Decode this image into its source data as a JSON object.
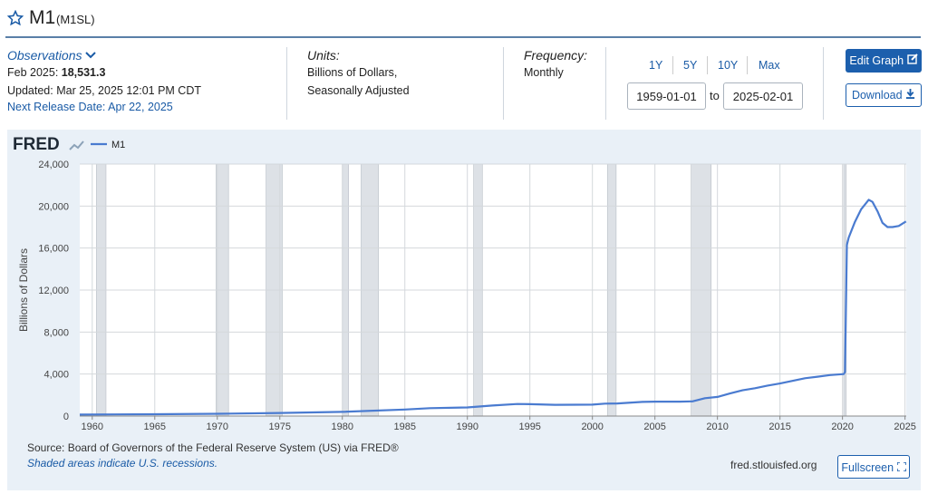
{
  "header": {
    "title": "M1",
    "code": "(M1SL)"
  },
  "observations": {
    "label": "Observations",
    "latest_label": "Feb 2025:",
    "latest_value": "18,531.3",
    "updated": "Updated: Mar 25, 2025 12:01 PM CDT",
    "next_release": "Next Release Date: Apr 22, 2025"
  },
  "units": {
    "label": "Units:",
    "lines": [
      "Billions of Dollars,",
      "Seasonally Adjusted"
    ]
  },
  "frequency": {
    "label": "Frequency:",
    "value": "Monthly"
  },
  "range": {
    "buttons": [
      "1Y",
      "5Y",
      "10Y",
      "Max"
    ],
    "start": "1959-01-01",
    "separator": "to",
    "end": "2025-02-01"
  },
  "actions": {
    "edit": "Edit Graph",
    "download": "Download",
    "fullscreen": "Fullscreen"
  },
  "chart_data": {
    "type": "line",
    "logo": "FRED",
    "y_label": "Billions of Dollars",
    "x": [
      1959,
      1965,
      1970,
      1975,
      1980,
      1985,
      1987,
      1990,
      1992,
      1994,
      1995,
      1997,
      2000,
      2001,
      2002,
      2004,
      2005,
      2007,
      2008,
      2009,
      2010,
      2011,
      2012,
      2013,
      2014,
      2015,
      2016,
      2017,
      2018,
      2019,
      2020.1,
      2020.2,
      2020.35,
      2020.5,
      2021,
      2021.5,
      2022.1,
      2022.4,
      2022.8,
      2023.2,
      2023.6,
      2024,
      2024.5,
      2025.08
    ],
    "series": [
      {
        "name": "M1",
        "color": "#4a7bd0",
        "values": [
          140,
          170,
          215,
          290,
          400,
          620,
          750,
          820,
          1000,
          1150,
          1130,
          1070,
          1090,
          1180,
          1200,
          1350,
          1370,
          1370,
          1400,
          1700,
          1820,
          2150,
          2450,
          2650,
          2900,
          3100,
          3350,
          3600,
          3750,
          3900,
          4000,
          4200,
          16300,
          17000,
          18500,
          19700,
          20600,
          20400,
          19500,
          18400,
          18000,
          18000,
          18100,
          18531.3
        ]
      }
    ],
    "recessions": [
      [
        1960.33,
        1961.1
      ],
      [
        1969.9,
        1970.9
      ],
      [
        1973.9,
        1975.2
      ],
      [
        1980.0,
        1980.5
      ],
      [
        1981.5,
        1982.9
      ],
      [
        1990.5,
        1991.2
      ],
      [
        2001.2,
        2001.9
      ],
      [
        2007.9,
        2009.5
      ],
      [
        2020.1,
        2020.3
      ]
    ],
    "xlim": [
      1959,
      2025.1
    ],
    "ylim": [
      0,
      24000
    ],
    "xticks": [
      1960,
      1965,
      1970,
      1975,
      1980,
      1985,
      1990,
      1995,
      2000,
      2005,
      2010,
      2015,
      2020,
      2025
    ],
    "yticks": [
      0,
      {
        "value": 4000,
        "label": "4,000"
      },
      {
        "value": 8000,
        "label": "8,000"
      },
      {
        "value": 12000,
        "label": "12,000"
      },
      {
        "value": 16000,
        "label": "16,000"
      },
      {
        "value": 20000,
        "label": "20,000"
      },
      {
        "value": 24000,
        "label": "24,000"
      }
    ],
    "grid": true,
    "source": "Source: Board of Governors of the Federal Reserve System (US) via FRED®",
    "note": "Shaded areas indicate U.S. recessions.",
    "url": "fred.stlouisfed.org"
  }
}
